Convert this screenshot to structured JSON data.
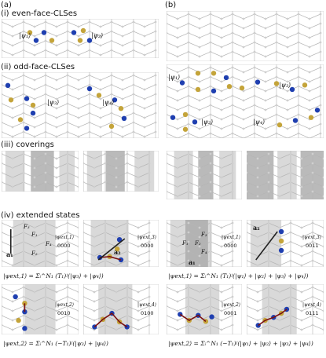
{
  "panels": {
    "a": "(a)",
    "b": "(b)"
  },
  "sections": {
    "i": "(i) even-face-CLSes",
    "ii": "(ii) odd-face-CLSes",
    "iii": "(iii) coverings",
    "iv": "(iv) extended states"
  },
  "states": {
    "psi1": "|ψ₁⟩",
    "psi2": "|ψ₂⟩",
    "psi3": "|ψ₃⟩",
    "psi4": "|ψ₄⟩"
  },
  "extended": {
    "a_ext1": {
      "label": "|ψext,1⟩",
      "code": "0000"
    },
    "a_ext3": {
      "label": "|ψext,3⟩",
      "code": "0000"
    },
    "a_ext2": {
      "label": "|ψext,2⟩",
      "code": "0010"
    },
    "a_ext4": {
      "label": "|ψext,4⟩",
      "code": "0100"
    },
    "b_ext1": {
      "label": "|ψext,1⟩",
      "code": "0000"
    },
    "b_ext3": {
      "label": "|ψext,3⟩",
      "code": "0011"
    },
    "b_ext2": {
      "label": "|ψext,2⟩",
      "code": "0001"
    },
    "b_ext4": {
      "label": "|ψext,4⟩",
      "code": "0111"
    }
  },
  "faces": {
    "F1": "F₁",
    "F2": "F₂",
    "F3": "F₃",
    "F4": "F₄"
  },
  "vectors": {
    "a1": "a₁",
    "a2": "a₂"
  },
  "formulas": {
    "a_top": "|ψext,1⟩ = Σᵢ^N₁ (T₁)ʲ(|ψ₃⟩ + |ψ₄⟩)",
    "a_bottom": "|ψext,2⟩ = Σᵢ^N₁ (−T₁)ʲ(|ψ₃⟩ + |ψ₄⟩)",
    "b_top": "|ψext,1⟩ = Σᵢ^N₁ (T₁)ʲ(|ψ₁⟩ + |ψ₂⟩ + |ψ₃⟩ + |ψ₄⟩)",
    "b_bottom": "|ψext,2⟩ = Σᵢ^N₁ (−T₁)ʲ(|ψ₁⟩ + |ψ₂⟩ + |ψ₃⟩ + |ψ₄⟩)"
  },
  "colors": {
    "gold": "#c4a43a",
    "blue": "#1f3fb0",
    "lattice": "#b5b5b5",
    "shade": "#cfcfcf",
    "shade_dark": "#a9a9a9",
    "arrow": "#222222",
    "path": "#7a1010"
  }
}
